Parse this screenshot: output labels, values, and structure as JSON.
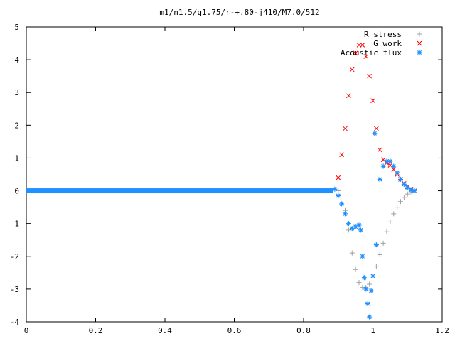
{
  "chart_data": {
    "type": "scatter",
    "title": "m1/n1.5/q1.75/r-+.80-j410/M7.0/512",
    "xlabel": "",
    "ylabel": "",
    "xlim": [
      0,
      1.2
    ],
    "ylim": [
      -4,
      5
    ],
    "xticks": [
      "0",
      "0.2",
      "0.4",
      "0.6",
      "0.8",
      "1",
      "1.2"
    ],
    "yticks": [
      "5",
      "4",
      "3",
      "2",
      "1",
      "0",
      "-1",
      "-2",
      "-3",
      "-4"
    ],
    "grid": false,
    "legend_position": "top-right",
    "series": [
      {
        "name": "R stress",
        "marker": "plus",
        "color": "#a0a0a0",
        "x": [
          0.9,
          0.92,
          0.93,
          0.94,
          0.95,
          0.96,
          0.97,
          0.98,
          0.99,
          1.0,
          1.01,
          1.02,
          1.03,
          1.04,
          1.05,
          1.06,
          1.07,
          1.08,
          1.09,
          1.1,
          1.11,
          1.12
        ],
        "y": [
          0.0,
          -0.6,
          -1.2,
          -1.9,
          -2.4,
          -2.8,
          -2.95,
          -2.95,
          -2.85,
          -2.6,
          -2.3,
          -1.95,
          -1.6,
          -1.25,
          -0.95,
          -0.7,
          -0.5,
          -0.33,
          -0.2,
          -0.1,
          -0.03,
          0.0
        ]
      },
      {
        "name": "G work",
        "marker": "cross",
        "color": "#ff0000",
        "x": [
          0.88,
          0.9,
          0.91,
          0.92,
          0.93,
          0.94,
          0.95,
          0.96,
          0.97,
          0.98,
          0.99,
          1.0,
          1.01,
          1.02,
          1.03,
          1.04,
          1.05,
          1.06,
          1.07,
          1.08,
          1.09,
          1.1,
          1.11,
          1.12
        ],
        "y": [
          0.0,
          0.4,
          1.1,
          1.9,
          2.9,
          3.7,
          4.2,
          4.45,
          4.45,
          4.1,
          3.5,
          2.75,
          1.9,
          1.25,
          0.95,
          0.85,
          0.78,
          0.65,
          0.5,
          0.35,
          0.22,
          0.12,
          0.05,
          0.0
        ]
      },
      {
        "name": "Acoustic flux",
        "marker": "star",
        "color": "#1e90ff",
        "baseline_x": [
          0.0,
          0.885
        ],
        "baseline_y": 0.0,
        "x": [
          0.89,
          0.9,
          0.91,
          0.92,
          0.93,
          0.94,
          0.95,
          0.96,
          0.965,
          0.97,
          0.975,
          0.98,
          0.985,
          0.99,
          0.995,
          1.0,
          1.005,
          1.01,
          1.02,
          1.03,
          1.04,
          1.05,
          1.06,
          1.07,
          1.08,
          1.09,
          1.1,
          1.11,
          1.12
        ],
        "y": [
          0.05,
          -0.15,
          -0.4,
          -0.7,
          -1.0,
          -1.15,
          -1.1,
          -1.05,
          -1.2,
          -2.0,
          -2.65,
          -3.0,
          -3.45,
          -3.85,
          -3.05,
          -2.6,
          1.75,
          -1.65,
          0.35,
          0.75,
          0.9,
          0.9,
          0.75,
          0.55,
          0.35,
          0.2,
          0.1,
          0.03,
          0.0
        ]
      }
    ]
  }
}
